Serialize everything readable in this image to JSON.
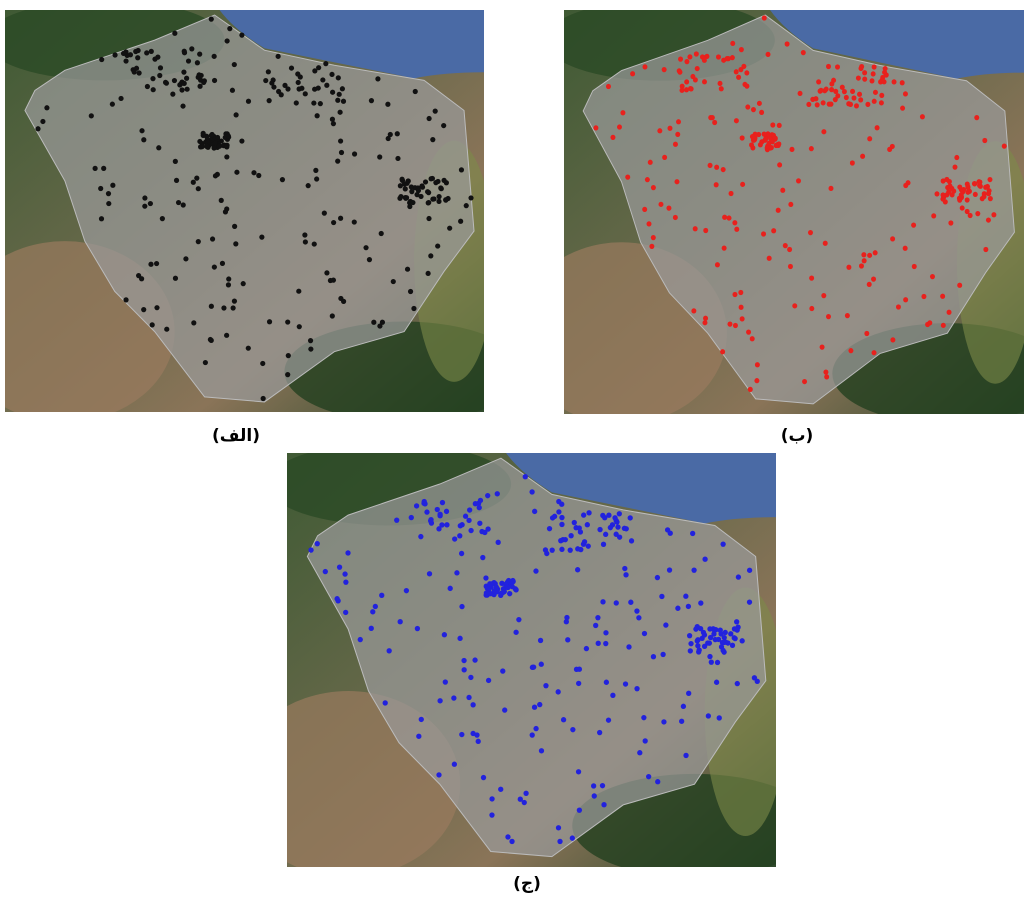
{
  "panels": [
    {
      "label": "(الف)"
    },
    {
      "label": "(ب)"
    },
    {
      "label": "(ج)"
    }
  ]
}
